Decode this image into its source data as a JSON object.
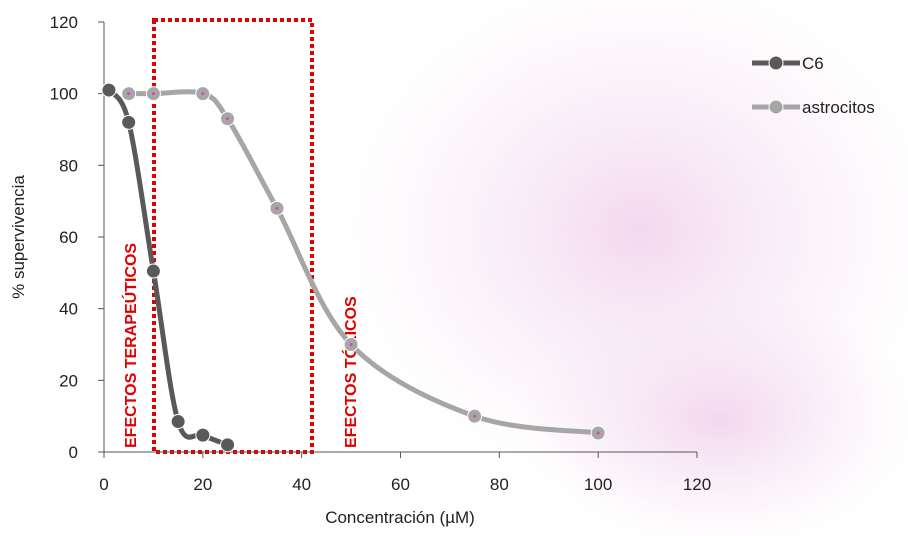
{
  "chart_data": {
    "type": "line",
    "x_label": "Concentración (µM)",
    "y_label": "% supervivencia",
    "annotations": [
      "EFECTOS TERAPEÚTICOS",
      "EFECTOS TÓXICOS"
    ],
    "xlim": [
      0,
      120
    ],
    "xticks": [
      0,
      20,
      40,
      60,
      80,
      100,
      120
    ],
    "ylim": [
      0,
      120
    ],
    "yticks": [
      0,
      20,
      40,
      60,
      80,
      100,
      120
    ],
    "grid": false,
    "legend": "right",
    "series": [
      {
        "name": "C6",
        "color": "#595959",
        "x": [
          1,
          5,
          10,
          15,
          20,
          25
        ],
        "values": [
          101,
          92,
          50.5,
          8.5,
          4.7,
          2
        ]
      },
      {
        "name": "astrocitos",
        "color": "#a6a6a6",
        "x": [
          5,
          10,
          20,
          25,
          35,
          50,
          75,
          100
        ],
        "values": [
          100,
          100,
          100,
          93,
          68,
          30,
          10,
          5.3
        ]
      }
    ]
  }
}
